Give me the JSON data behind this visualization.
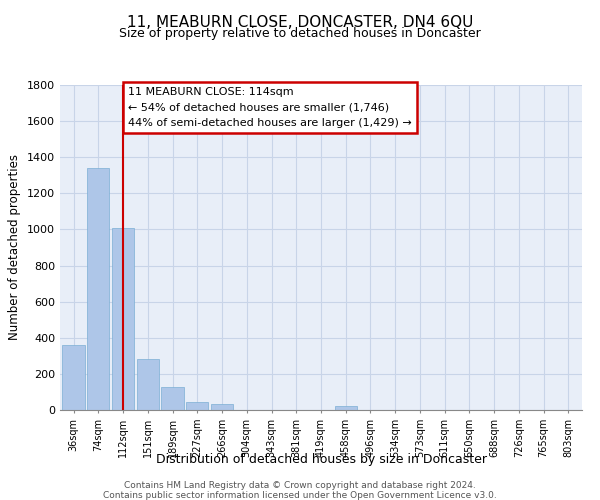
{
  "title": "11, MEABURN CLOSE, DONCASTER, DN4 6QU",
  "subtitle": "Size of property relative to detached houses in Doncaster",
  "xlabel": "Distribution of detached houses by size in Doncaster",
  "ylabel": "Number of detached properties",
  "bar_labels": [
    "36sqm",
    "74sqm",
    "112sqm",
    "151sqm",
    "189sqm",
    "227sqm",
    "266sqm",
    "304sqm",
    "343sqm",
    "381sqm",
    "419sqm",
    "458sqm",
    "496sqm",
    "534sqm",
    "573sqm",
    "611sqm",
    "650sqm",
    "688sqm",
    "726sqm",
    "765sqm",
    "803sqm"
  ],
  "bar_values": [
    360,
    1340,
    1010,
    285,
    130,
    45,
    35,
    0,
    0,
    0,
    0,
    20,
    0,
    0,
    0,
    0,
    0,
    0,
    0,
    0,
    0
  ],
  "bar_color": "#aec6e8",
  "bar_edge_color": "#7bafd4",
  "property_line_x": 2,
  "property_line_color": "#cc0000",
  "ylim": [
    0,
    1800
  ],
  "yticks": [
    0,
    200,
    400,
    600,
    800,
    1000,
    1200,
    1400,
    1600,
    1800
  ],
  "annotation_title": "11 MEABURN CLOSE: 114sqm",
  "annotation_line1": "← 54% of detached houses are smaller (1,746)",
  "annotation_line2": "44% of semi-detached houses are larger (1,429) →",
  "annotation_box_color": "#ffffff",
  "annotation_box_edge": "#cc0000",
  "footer_line1": "Contains HM Land Registry data © Crown copyright and database right 2024.",
  "footer_line2": "Contains public sector information licensed under the Open Government Licence v3.0.",
  "background_color": "#ffffff",
  "plot_bg_color": "#e8eef8",
  "grid_color": "#c8d4e8"
}
